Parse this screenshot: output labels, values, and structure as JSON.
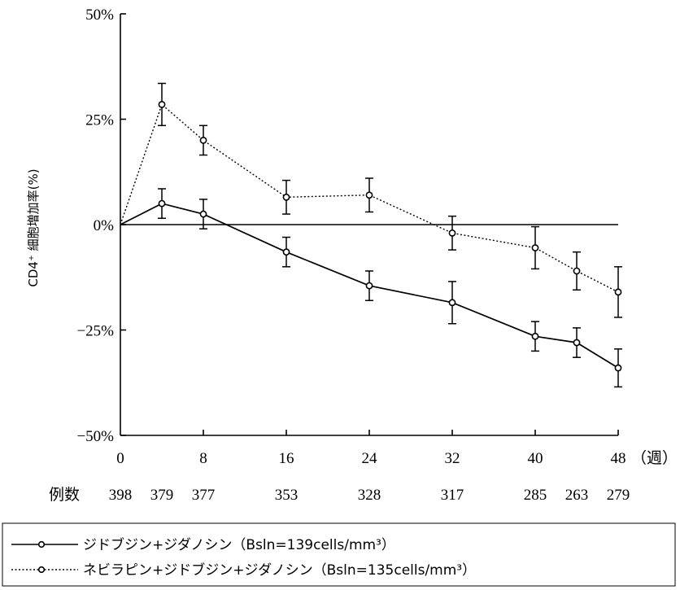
{
  "chart_data": {
    "type": "line",
    "ylabel": "CD4⁺ 細胞増加率(%)",
    "x_unit": "（週）",
    "y_ticks": [
      50,
      25,
      0,
      -25,
      -50
    ],
    "y_tick_labels": [
      "50%",
      "25%",
      "0%",
      "−25%",
      "−50%"
    ],
    "ylim": [
      -50,
      50
    ],
    "x_ticks": [
      0,
      8,
      16,
      24,
      32,
      40,
      48
    ],
    "x_tick_labels": [
      "0",
      "8",
      "16",
      "24",
      "32",
      "40",
      "48"
    ],
    "xlim": [
      0,
      48
    ],
    "count_label": "例数",
    "counts": [
      {
        "x": 0,
        "n": "398"
      },
      {
        "x": 4,
        "n": "379"
      },
      {
        "x": 8,
        "n": "377"
      },
      {
        "x": 16,
        "n": "353"
      },
      {
        "x": 24,
        "n": "328"
      },
      {
        "x": 32,
        "n": "317"
      },
      {
        "x": 40,
        "n": "285"
      },
      {
        "x": 44,
        "n": "263"
      },
      {
        "x": 48,
        "n": "279"
      }
    ],
    "series": [
      {
        "name": "ジドブジン+ジダノシン（Bsln=139cells/mm³）",
        "style": "solid",
        "x": [
          0,
          4,
          8,
          16,
          24,
          32,
          40,
          44,
          48
        ],
        "y": [
          0,
          5,
          2.5,
          -6.5,
          -14.5,
          -18.5,
          -26.5,
          -28,
          -34
        ],
        "err": [
          0,
          3.5,
          3.5,
          3.5,
          3.5,
          5,
          3.5,
          3.5,
          4.5
        ]
      },
      {
        "name": "ネビラピン+ジドブジン+ジダノシン（Bsln=135cells/mm³）",
        "style": "dotted",
        "x": [
          0,
          4,
          8,
          16,
          24,
          32,
          40,
          44,
          48
        ],
        "y": [
          0,
          28.5,
          20,
          6.5,
          7,
          -2,
          -5.5,
          -11,
          -16
        ],
        "err": [
          0,
          5,
          3.5,
          4,
          4,
          4,
          5,
          4.5,
          6
        ]
      }
    ],
    "legend": {
      "solid_label": "ジドブジン+ジダノシン（Bsln=139cells/mm³）",
      "dotted_label": "ネビラピン+ジドブジン+ジダノシン（Bsln=135cells/mm³）"
    },
    "colors": {
      "line": "#000000",
      "marker_fill": "#ffffff"
    }
  }
}
